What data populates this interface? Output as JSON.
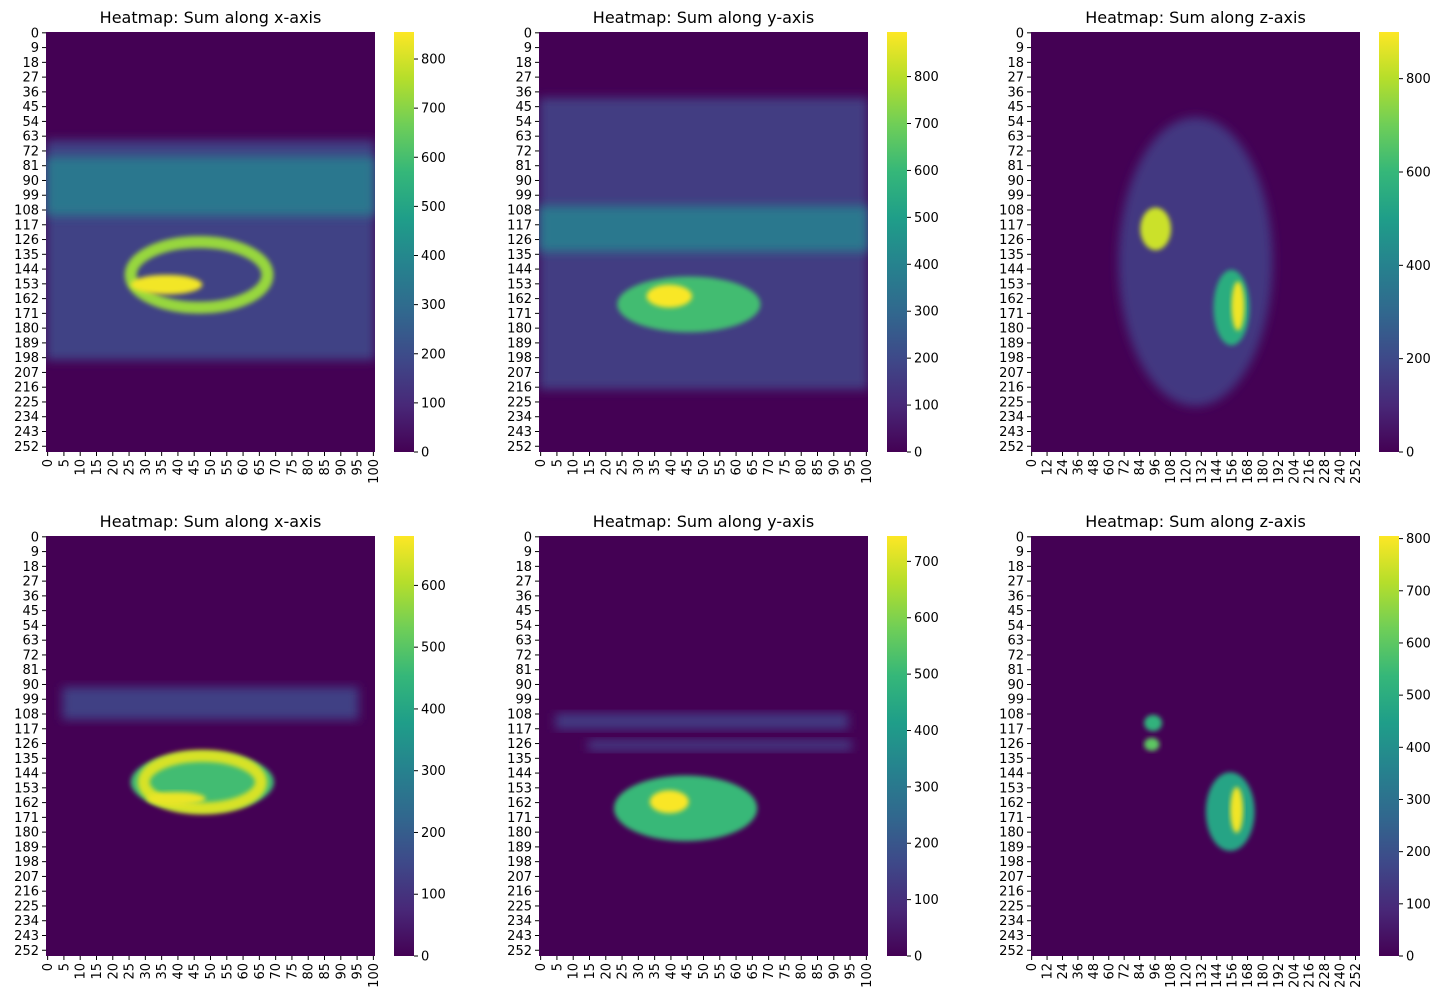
{
  "figure": {
    "colormap": "viridis",
    "colormap_stops": [
      "#440154",
      "#482878",
      "#3e4989",
      "#31688e",
      "#26828e",
      "#1f9e89",
      "#35b779",
      "#6ece58",
      "#b5de2b",
      "#fde725"
    ],
    "background": "#ffffff"
  },
  "chart_data": [
    {
      "type": "heatmap",
      "title": "Heatmap: Sum along x-axis",
      "x_ticks": [
        "0",
        "5",
        "10",
        "15",
        "20",
        "25",
        "30",
        "35",
        "40",
        "45",
        "50",
        "55",
        "60",
        "65",
        "70",
        "75",
        "80",
        "85",
        "90",
        "95",
        "100"
      ],
      "y_ticks": [
        "0",
        "9",
        "18",
        "27",
        "36",
        "45",
        "54",
        "63",
        "72",
        "81",
        "90",
        "99",
        "108",
        "117",
        "126",
        "135",
        "144",
        "153",
        "162",
        "171",
        "180",
        "189",
        "198",
        "207",
        "216",
        "225",
        "234",
        "243",
        "252"
      ],
      "x_range": [
        0,
        101
      ],
      "y_range": [
        0,
        256
      ],
      "colorbar_ticks": [
        0,
        100,
        200,
        300,
        400,
        500,
        600,
        700,
        800
      ],
      "vmax": 855,
      "features": [
        {
          "shape": "band",
          "y_top": 66,
          "y_bottom": 200,
          "x_start": 0,
          "x_end": 101,
          "value": 170
        },
        {
          "shape": "band",
          "y_top": 76,
          "y_bottom": 112,
          "x_start": 0,
          "x_end": 101,
          "value": 340
        },
        {
          "shape": "ring",
          "cx": 47,
          "cy": 148,
          "rx": 21,
          "ry": 20,
          "value": 720
        },
        {
          "shape": "blob",
          "cx": 37,
          "cy": 154,
          "rx": 11,
          "ry": 6,
          "value": 840
        }
      ]
    },
    {
      "type": "heatmap",
      "title": "Heatmap: Sum along y-axis",
      "x_ticks": [
        "0",
        "5",
        "10",
        "15",
        "20",
        "25",
        "30",
        "35",
        "40",
        "45",
        "50",
        "55",
        "60",
        "65",
        "70",
        "75",
        "80",
        "85",
        "90",
        "95",
        "100"
      ],
      "y_ticks": [
        "0",
        "9",
        "18",
        "27",
        "36",
        "45",
        "54",
        "63",
        "72",
        "81",
        "90",
        "99",
        "108",
        "117",
        "126",
        "135",
        "144",
        "153",
        "162",
        "171",
        "180",
        "189",
        "198",
        "207",
        "216",
        "225",
        "234",
        "243",
        "252"
      ],
      "x_range": [
        0,
        101
      ],
      "y_range": [
        0,
        256
      ],
      "colorbar_ticks": [
        0,
        100,
        200,
        300,
        400,
        500,
        600,
        700,
        800
      ],
      "vmax": 895,
      "features": [
        {
          "shape": "band",
          "y_top": 40,
          "y_bottom": 218,
          "x_start": 0,
          "x_end": 101,
          "value": 160
        },
        {
          "shape": "band",
          "y_top": 106,
          "y_bottom": 134,
          "x_start": 0,
          "x_end": 101,
          "value": 360
        },
        {
          "shape": "blob",
          "cx": 46,
          "cy": 166,
          "rx": 22,
          "ry": 17,
          "value": 620
        },
        {
          "shape": "blob",
          "cx": 40,
          "cy": 161,
          "rx": 7,
          "ry": 7,
          "value": 890
        }
      ]
    },
    {
      "type": "heatmap",
      "title": "Heatmap: Sum along z-axis",
      "x_ticks": [
        "0",
        "12",
        "24",
        "36",
        "48",
        "60",
        "72",
        "84",
        "96",
        "108",
        "120",
        "132",
        "144",
        "156",
        "168",
        "180",
        "192",
        "204",
        "216",
        "228",
        "240",
        "252"
      ],
      "y_ticks": [
        "0",
        "9",
        "18",
        "27",
        "36",
        "45",
        "54",
        "63",
        "72",
        "81",
        "90",
        "99",
        "108",
        "117",
        "126",
        "135",
        "144",
        "153",
        "162",
        "171",
        "180",
        "189",
        "198",
        "207",
        "216",
        "225",
        "234",
        "243",
        "252"
      ],
      "x_range": [
        0,
        256
      ],
      "y_range": [
        0,
        256
      ],
      "colorbar_ticks": [
        0,
        200,
        400,
        600,
        800
      ],
      "vmax": 900,
      "features": [
        {
          "shape": "ellipse",
          "cx": 128,
          "cy": 140,
          "rx": 60,
          "ry": 88,
          "value": 150
        },
        {
          "shape": "blob",
          "cx": 97,
          "cy": 120,
          "rx": 12,
          "ry": 13,
          "value": 830
        },
        {
          "shape": "blob",
          "cx": 156,
          "cy": 168,
          "rx": 14,
          "ry": 23,
          "value": 560
        },
        {
          "shape": "blob",
          "cx": 161,
          "cy": 167,
          "rx": 5,
          "ry": 15,
          "value": 880
        }
      ]
    },
    {
      "type": "heatmap",
      "title": "Heatmap: Sum along x-axis",
      "x_ticks": [
        "0",
        "5",
        "10",
        "15",
        "20",
        "25",
        "30",
        "35",
        "40",
        "45",
        "50",
        "55",
        "60",
        "65",
        "70",
        "75",
        "80",
        "85",
        "90",
        "95",
        "100"
      ],
      "y_ticks": [
        "0",
        "9",
        "18",
        "27",
        "36",
        "45",
        "54",
        "63",
        "72",
        "81",
        "90",
        "99",
        "108",
        "117",
        "126",
        "135",
        "144",
        "153",
        "162",
        "171",
        "180",
        "189",
        "198",
        "207",
        "216",
        "225",
        "234",
        "243",
        "252"
      ],
      "x_range": [
        0,
        101
      ],
      "y_range": [
        0,
        256
      ],
      "colorbar_ticks": [
        0,
        100,
        200,
        300,
        400,
        500,
        600
      ],
      "vmax": 680,
      "features": [
        {
          "shape": "band",
          "y_top": 92,
          "y_bottom": 112,
          "x_start": 5,
          "x_end": 96,
          "value": 130
        },
        {
          "shape": "blob",
          "cx": 48,
          "cy": 150,
          "rx": 22,
          "ry": 18,
          "value": 470
        },
        {
          "shape": "ring",
          "cx": 48,
          "cy": 150,
          "rx": 18,
          "ry": 16,
          "value": 640
        },
        {
          "shape": "blob",
          "cx": 40,
          "cy": 160,
          "rx": 9,
          "ry": 4,
          "value": 660
        }
      ]
    },
    {
      "type": "heatmap",
      "title": "Heatmap: Sum along y-axis",
      "x_ticks": [
        "0",
        "5",
        "10",
        "15",
        "20",
        "25",
        "30",
        "35",
        "40",
        "45",
        "50",
        "55",
        "60",
        "65",
        "70",
        "75",
        "80",
        "85",
        "90",
        "95",
        "100"
      ],
      "y_ticks": [
        "0",
        "9",
        "18",
        "27",
        "36",
        "45",
        "54",
        "63",
        "72",
        "81",
        "90",
        "99",
        "108",
        "117",
        "126",
        "135",
        "144",
        "153",
        "162",
        "171",
        "180",
        "189",
        "198",
        "207",
        "216",
        "225",
        "234",
        "243",
        "252"
      ],
      "x_range": [
        0,
        101
      ],
      "y_range": [
        0,
        256
      ],
      "colorbar_ticks": [
        0,
        100,
        200,
        300,
        400,
        500,
        600,
        700
      ],
      "vmax": 745,
      "features": [
        {
          "shape": "band",
          "y_top": 108,
          "y_bottom": 118,
          "x_start": 5,
          "x_end": 95,
          "value": 130
        },
        {
          "shape": "band",
          "y_top": 124,
          "y_bottom": 131,
          "x_start": 15,
          "x_end": 96,
          "value": 120
        },
        {
          "shape": "blob",
          "cx": 45,
          "cy": 166,
          "rx": 22,
          "ry": 20,
          "value": 500
        },
        {
          "shape": "blob",
          "cx": 40,
          "cy": 162,
          "rx": 6,
          "ry": 7,
          "value": 740
        }
      ]
    },
    {
      "type": "heatmap",
      "title": "Heatmap: Sum along z-axis",
      "x_ticks": [
        "0",
        "12",
        "24",
        "36",
        "48",
        "60",
        "72",
        "84",
        "96",
        "108",
        "120",
        "132",
        "144",
        "156",
        "168",
        "180",
        "192",
        "204",
        "216",
        "228",
        "240",
        "252"
      ],
      "y_ticks": [
        "0",
        "9",
        "18",
        "27",
        "36",
        "45",
        "54",
        "63",
        "72",
        "81",
        "90",
        "99",
        "108",
        "117",
        "126",
        "135",
        "144",
        "153",
        "162",
        "171",
        "180",
        "189",
        "198",
        "207",
        "216",
        "225",
        "234",
        "243",
        "252"
      ],
      "x_range": [
        0,
        256
      ],
      "y_range": [
        0,
        256
      ],
      "colorbar_ticks": [
        0,
        100,
        200,
        300,
        400,
        500,
        600,
        700,
        800
      ],
      "vmax": 805,
      "features": [
        {
          "shape": "blob",
          "cx": 95,
          "cy": 114,
          "rx": 7,
          "ry": 5,
          "value": 520
        },
        {
          "shape": "blob",
          "cx": 94,
          "cy": 127,
          "rx": 6,
          "ry": 4,
          "value": 600
        },
        {
          "shape": "blob",
          "cx": 155,
          "cy": 168,
          "rx": 19,
          "ry": 24,
          "value": 470
        },
        {
          "shape": "blob",
          "cx": 160,
          "cy": 167,
          "rx": 5,
          "ry": 14,
          "value": 790
        }
      ]
    }
  ]
}
